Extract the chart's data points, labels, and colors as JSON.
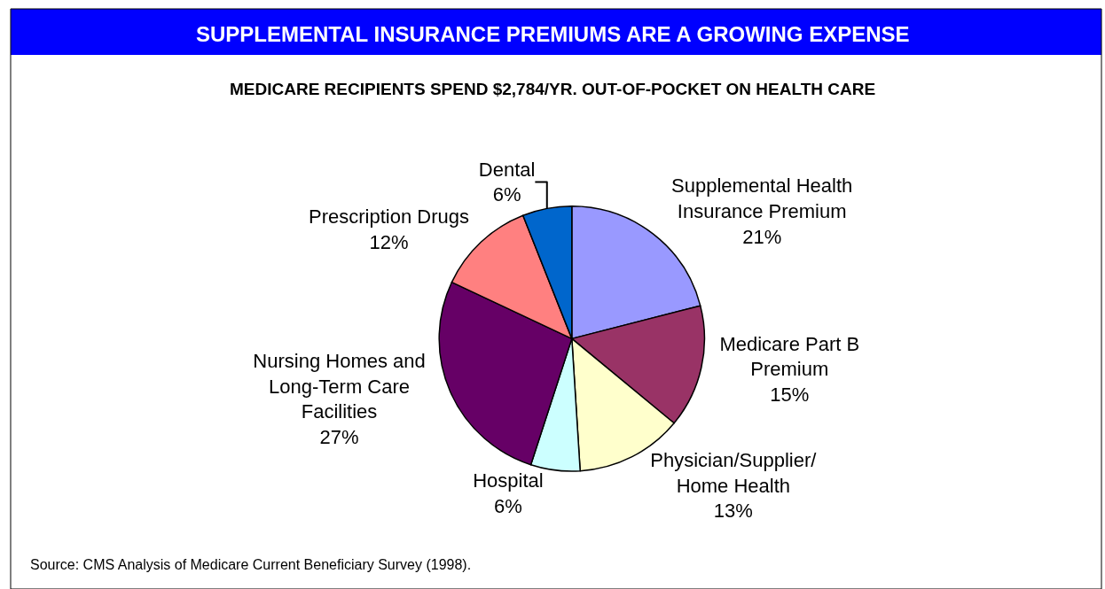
{
  "chart_data": {
    "type": "pie",
    "title": "SUPPLEMENTAL INSURANCE PREMIUMS ARE A GROWING EXPENSE",
    "subtitle": "MEDICARE RECIPIENTS SPEND $2,784/YR. OUT-OF-POCKET ON HEALTH CARE",
    "categories": [
      "Supplemental Health\nInsurance Premium",
      "Medicare Part B\nPremium",
      "Physician/Supplier/\nHome Health",
      "Hospital",
      "Nursing Homes and\nLong-Term Care\nFacilities",
      "Prescription Drugs",
      "Dental"
    ],
    "values": [
      21,
      15,
      13,
      6,
      27,
      12,
      6
    ],
    "value_labels": [
      "21%",
      "15%",
      "13%",
      "6%",
      "27%",
      "12%",
      "6%"
    ],
    "colors": [
      "#9999ff",
      "#993366",
      "#ffffcc",
      "#ccffff",
      "#660066",
      "#ff8080",
      "#0066cc"
    ],
    "legend": false,
    "annotations": [
      "Source: CMS Analysis of Medicare Current Beneficiary Survey (1998)."
    ]
  }
}
